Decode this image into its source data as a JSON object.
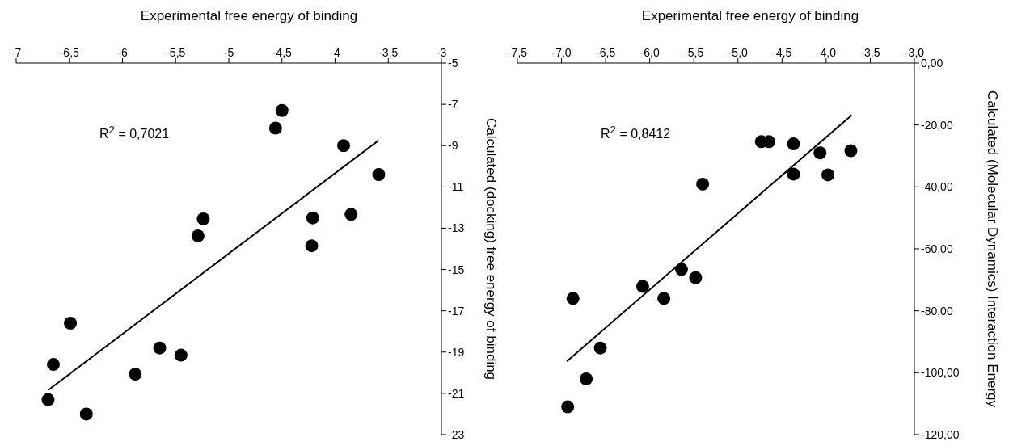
{
  "chart_data": [
    {
      "type": "scatter",
      "xlabel": "Experimental free energy of binding",
      "ylabel": "Calculated (docking) free energy of binding",
      "annotations": [
        "R$^{2}$ = 0,7021"
      ],
      "grid": false,
      "xlim": [
        -7,
        -3
      ],
      "xticks": [
        -7,
        {
          "value": -6.5,
          "label": "-6,5"
        },
        -6,
        {
          "value": -5.5,
          "label": "-5,5"
        },
        -5,
        {
          "value": -4.5,
          "label": "-4,5"
        },
        -4,
        {
          "value": -3.5,
          "label": "-3,5"
        },
        -3
      ],
      "ylim": [
        -23,
        -5
      ],
      "yticks": [
        -5,
        -7,
        -9,
        -11,
        -13,
        -15,
        -17,
        -19,
        -21,
        -23
      ],
      "series": [
        {
          "marker": "circle",
          "color": "#000000",
          "x": [
            -4.5,
            -4.56,
            -3.92,
            -3.59,
            -5.24,
            -4.21,
            -3.85,
            -5.29,
            -4.22,
            -6.49,
            -6.65,
            -6.7,
            -6.34,
            -5.88,
            -5.65,
            -5.45
          ],
          "values": [
            -7.3,
            -8.15,
            -9.0,
            -10.4,
            -12.55,
            -12.5,
            -12.33,
            -13.37,
            -13.85,
            -17.6,
            -19.6,
            -21.3,
            -22.0,
            -20.07,
            -18.8,
            -19.15
          ]
        },
        {
          "type": "line",
          "color": "#000000",
          "x": [
            -6.7,
            -3.59
          ],
          "values": [
            -20.85,
            -8.74
          ]
        }
      ]
    },
    {
      "type": "scatter",
      "xlabel": "Experimental free energy of binding",
      "ylabel": "Calculated (Molecular Dynamics) Interaction Energy",
      "annotations": [
        "R$^{2}$ = 0,8412"
      ],
      "grid": false,
      "xlim": [
        -7.5,
        -3.0
      ],
      "xticks": [
        {
          "value": -7.5,
          "label": "-7,5"
        },
        {
          "value": -7,
          "label": "-7,0"
        },
        {
          "value": -6.5,
          "label": "-6,5"
        },
        {
          "value": -6,
          "label": "-6,0"
        },
        {
          "value": -5.5,
          "label": "-5,5"
        },
        {
          "value": -5,
          "label": "-5,0"
        },
        {
          "value": -4.5,
          "label": "-4,5"
        },
        {
          "value": -4,
          "label": "-4,0"
        },
        {
          "value": -3.5,
          "label": "-3,5"
        },
        {
          "value": -3,
          "label": "-3,0"
        }
      ],
      "ylim": [
        -120,
        0
      ],
      "yticks": [
        {
          "value": 0,
          "label": "0,00"
        },
        {
          "value": -20,
          "label": "-20,00"
        },
        {
          "value": -40,
          "label": "-40,00"
        },
        {
          "value": -60,
          "label": "-60,00"
        },
        {
          "value": -80,
          "label": "-80,00"
        },
        {
          "value": -100,
          "label": "-100,00"
        },
        {
          "value": -120,
          "label": "-120,00"
        }
      ],
      "series": [
        {
          "marker": "circle",
          "color": "#000000",
          "x": [
            -4.735,
            -4.65,
            -4.37,
            -4.07,
            -3.72,
            -4.37,
            -3.98,
            -5.4,
            -5.64,
            -5.48,
            -6.08,
            -5.84,
            -6.87,
            -6.56,
            -6.72,
            -6.93
          ],
          "values": [
            -25.4,
            -25.4,
            -26.1,
            -29.0,
            -28.3,
            -35.9,
            -36.1,
            -39.1,
            -66.6,
            -69.3,
            -72.1,
            -76.0,
            -76.0,
            -92.0,
            -102.0,
            -111.0
          ]
        },
        {
          "type": "line",
          "color": "#000000",
          "x": [
            -6.94,
            -3.71
          ],
          "values": [
            -96.3,
            -16.8
          ]
        }
      ]
    }
  ]
}
